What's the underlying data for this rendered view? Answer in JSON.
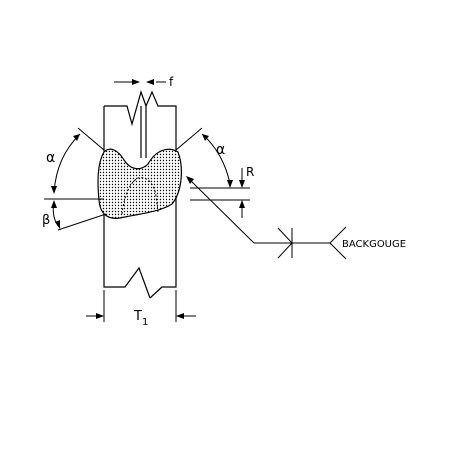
{
  "labels": {
    "root_face": "f",
    "groove_angle_left": "α",
    "groove_angle_right": "α",
    "bevel_angle": "β",
    "root_radius": "R",
    "thickness_symbol": "T",
    "thickness_subscript": "1",
    "backgouge_note": "BACKGOUGE"
  }
}
